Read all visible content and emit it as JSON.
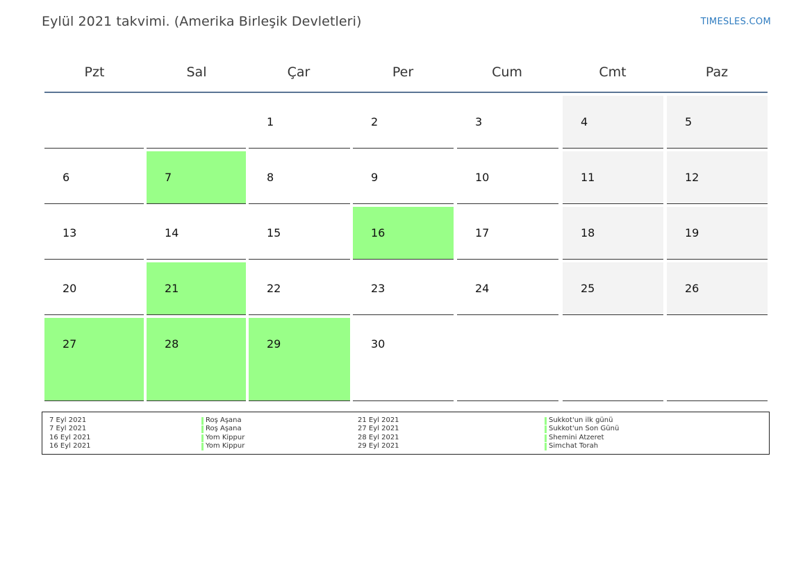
{
  "header": {
    "title": "Eylül 2021 takvimi. (Amerika Birleşik Devletleri)",
    "brand": "TIMESLES.COM"
  },
  "weekdays": [
    "Pzt",
    "Sal",
    "Çar",
    "Per",
    "Cum",
    "Cmt",
    "Paz"
  ],
  "weeks": [
    [
      null,
      null,
      {
        "day": "1"
      },
      {
        "day": "2"
      },
      {
        "day": "3"
      },
      {
        "day": "4",
        "weekend": true
      },
      {
        "day": "5",
        "weekend": true
      }
    ],
    [
      {
        "day": "6"
      },
      {
        "day": "7",
        "holiday": true
      },
      {
        "day": "8"
      },
      {
        "day": "9"
      },
      {
        "day": "10"
      },
      {
        "day": "11",
        "weekend": true
      },
      {
        "day": "12",
        "weekend": true
      }
    ],
    [
      {
        "day": "13"
      },
      {
        "day": "14"
      },
      {
        "day": "15"
      },
      {
        "day": "16",
        "holiday": true
      },
      {
        "day": "17"
      },
      {
        "day": "18",
        "weekend": true
      },
      {
        "day": "19",
        "weekend": true
      }
    ],
    [
      {
        "day": "20"
      },
      {
        "day": "21",
        "holiday": true
      },
      {
        "day": "22"
      },
      {
        "day": "23"
      },
      {
        "day": "24"
      },
      {
        "day": "25",
        "weekend": true
      },
      {
        "day": "26",
        "weekend": true
      }
    ],
    [
      {
        "day": "27",
        "holiday": true
      },
      {
        "day": "28",
        "holiday": true
      },
      {
        "day": "29",
        "holiday": true
      },
      {
        "day": "30"
      },
      {
        "empty": true
      },
      {
        "empty": true
      },
      {
        "empty": true
      }
    ]
  ],
  "colors": {
    "holiday": "#99ff88",
    "weekend": "#f3f3f3",
    "header_rule": "#5a7494",
    "brand": "#2f7cc0"
  },
  "holidays": [
    {
      "date": "7 Eyl 2021",
      "name": "Roş Aşana"
    },
    {
      "date": "7 Eyl 2021",
      "name": "Roş Aşana"
    },
    {
      "date": "16 Eyl 2021",
      "name": "Yom Kippur"
    },
    {
      "date": "16 Eyl 2021",
      "name": "Yom Kippur"
    },
    {
      "date": "21 Eyl 2021",
      "name": "Sukkot'un ilk günü"
    },
    {
      "date": "27 Eyl 2021",
      "name": "Sukkot'un Son Günü"
    },
    {
      "date": "28 Eyl 2021",
      "name": "Shemini Atzeret"
    },
    {
      "date": "29 Eyl 2021",
      "name": "Simchat Torah"
    }
  ]
}
